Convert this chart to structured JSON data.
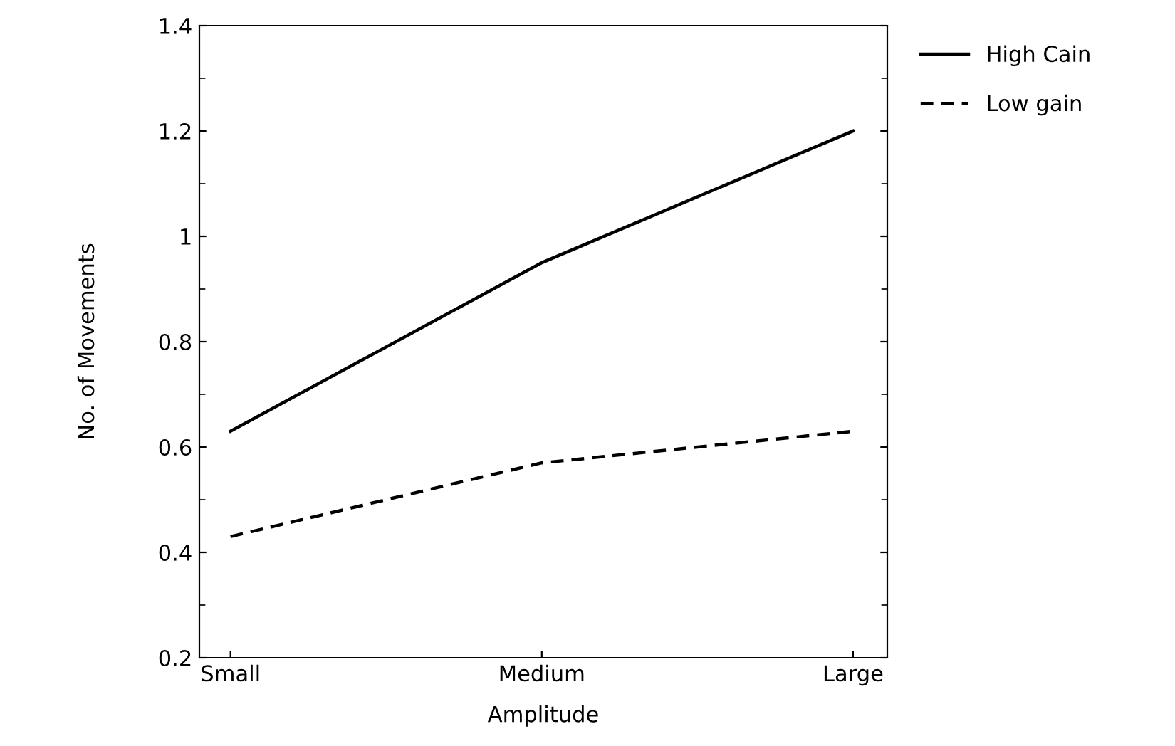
{
  "chart_data": {
    "type": "line",
    "xlabel": "Amplitude",
    "ylabel": "No. of Movements",
    "categories": [
      "Small",
      "Medium",
      "Large"
    ],
    "series": [
      {
        "name": "High Cain",
        "color": "#000000",
        "values": [
          0.63,
          0.95,
          1.2
        ],
        "line_style": "solid"
      },
      {
        "name": "Low gain",
        "color": "#000000",
        "values": [
          0.43,
          0.57,
          0.63
        ],
        "line_style": "dashed"
      }
    ],
    "ylim": [
      0.2,
      1.4
    ],
    "yticks": [
      0.2,
      0.4,
      0.6,
      0.8,
      1,
      1.2,
      1.4
    ],
    "grid": false,
    "legend": "top right",
    "marker": "none"
  }
}
